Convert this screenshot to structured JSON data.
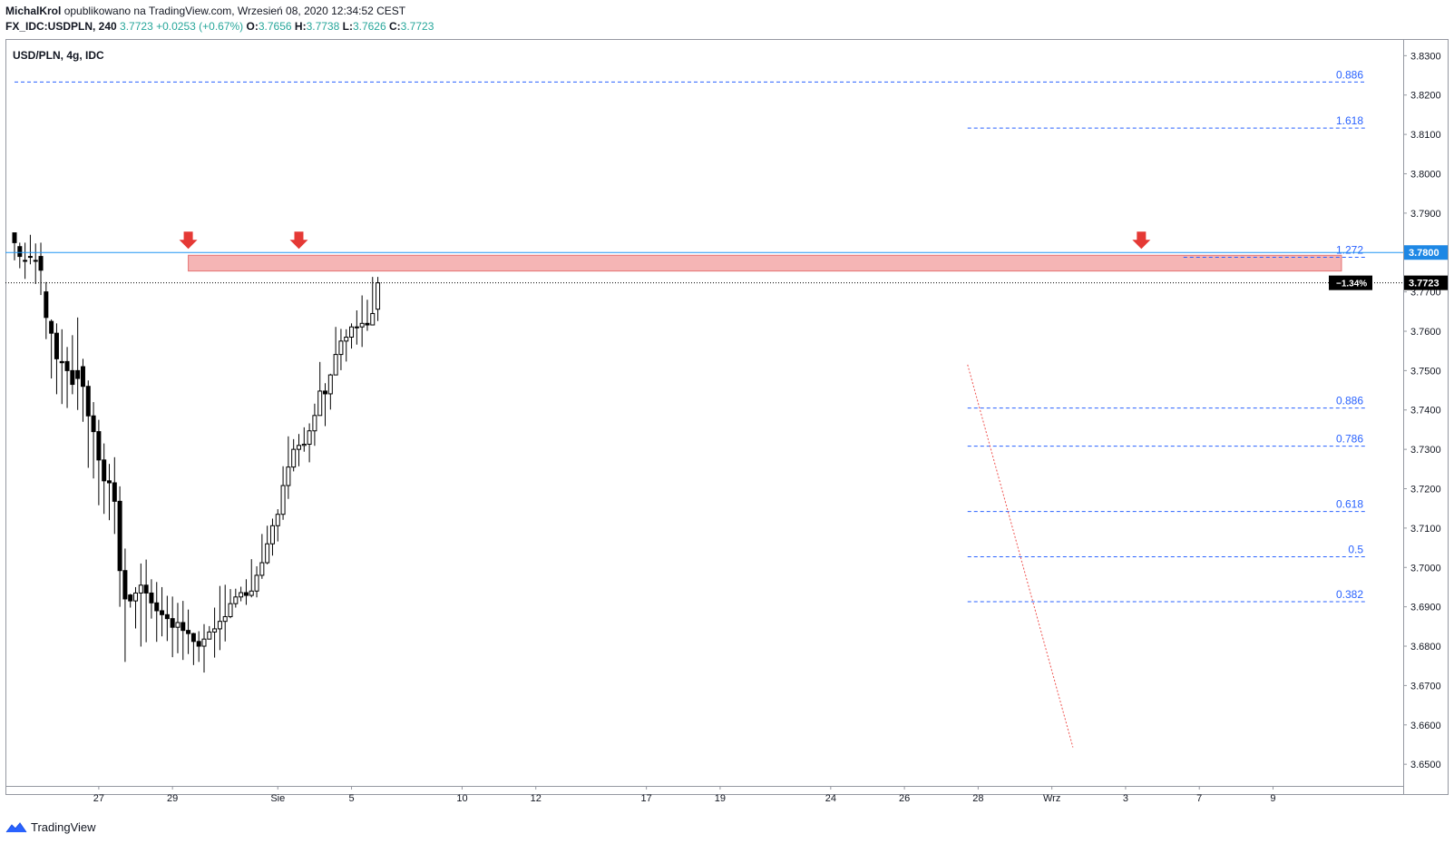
{
  "header": {
    "author": "MichalKrol",
    "published": "opublikowano na TradingView.com, Wrzesień 08, 2020 12:34:52 CEST",
    "symbol": "FX_IDC:USDPLN, 240",
    "last": "3.7723",
    "change": "+0.0253 (+0.67%)",
    "open_label": "O:",
    "open": "3.7656",
    "high_label": "H:",
    "high": "3.7738",
    "low_label": "L:",
    "low": "3.7626",
    "close_label": "C:",
    "close": "3.7723"
  },
  "pane_label": "USD/PLN, 4g, IDC",
  "footer": {
    "brand": "TradingView"
  },
  "colors": {
    "resistance_line": "#2196f3",
    "zone_fill": "#f5b5b5",
    "zone_border": "#e57373",
    "arrow": "#e53935",
    "fib_line": "#2962ff",
    "fib_label": "#2962ff",
    "price_badge_bg": "#1e88e5",
    "current_badge_bg": "#000000",
    "down_candle": "#000000",
    "up_candle": "#ffffff",
    "trend_line": "#ef5350"
  },
  "chart_data": {
    "type": "candlestick",
    "title": "USD/PLN, 4g, IDC",
    "ylim": [
      3.6445,
      3.834
    ],
    "yticks": [
      "3.6500",
      "3.6600",
      "3.6700",
      "3.6800",
      "3.6900",
      "3.7000",
      "3.7100",
      "3.7200",
      "3.7300",
      "3.7400",
      "3.7500",
      "3.7600",
      "3.7700",
      "3.7800",
      "3.7900",
      "3.8000",
      "3.8100",
      "3.8200",
      "3.8300"
    ],
    "xticks": [
      {
        "label": "27",
        "bar": 16
      },
      {
        "label": "29",
        "bar": 30
      },
      {
        "label": "Sie",
        "bar": 50
      },
      {
        "label": "5",
        "bar": 64
      },
      {
        "label": "10",
        "bar": 85
      },
      {
        "label": "12",
        "bar": 99
      },
      {
        "label": "17",
        "bar": 120
      },
      {
        "label": "19",
        "bar": 134
      },
      {
        "label": "24",
        "bar": 155
      },
      {
        "label": "26",
        "bar": 169
      },
      {
        "label": "28",
        "bar": 183
      },
      {
        "label": "Wrz",
        "bar": 197
      },
      {
        "label": "3",
        "bar": 211
      },
      {
        "label": "7",
        "bar": 225
      },
      {
        "label": "9",
        "bar": 239
      }
    ],
    "resistance_level": "3.7800",
    "current_price": "3.7723",
    "current_change": "−1.34%",
    "resistance_zone": {
      "from_bar": 33,
      "to_bar": 252,
      "low": 3.7753,
      "high": 3.7793
    },
    "resistance_arrows": [
      33,
      54,
      214
    ],
    "fib_levels": [
      {
        "label": "0.886",
        "value": 3.8233,
        "from_bar": 0
      },
      {
        "label": "1.618",
        "value": 3.8116,
        "from_bar": 181
      },
      {
        "label": "1.272",
        "value": 3.7788,
        "from_bar": 222
      },
      {
        "label": "0.886",
        "value": 3.7405,
        "from_bar": 181
      },
      {
        "label": "0.786",
        "value": 3.7308,
        "from_bar": 181
      },
      {
        "label": "0.618",
        "value": 3.7142,
        "from_bar": 181
      },
      {
        "label": "0.5",
        "value": 3.7027,
        "from_bar": 181
      },
      {
        "label": "0.382",
        "value": 3.6913,
        "from_bar": 181
      }
    ],
    "trend_line": {
      "from": {
        "bar": 181,
        "price": 3.7515
      },
      "to": {
        "bar": 201,
        "price": 3.6543
      }
    },
    "candles": [
      [
        3.785,
        3.7825,
        3.783,
        3.778
      ],
      [
        3.7815,
        3.779,
        3.7825,
        3.776
      ],
      [
        3.778,
        3.778,
        3.7825,
        3.7733
      ],
      [
        3.779,
        3.779,
        3.7845,
        3.777
      ],
      [
        3.778,
        3.778,
        3.7823,
        3.772
      ],
      [
        3.779,
        3.7755,
        3.7825,
        3.7692
      ],
      [
        3.77,
        3.7635,
        3.7725,
        3.758
      ],
      [
        3.7625,
        3.7595,
        3.763,
        3.748
      ],
      [
        3.7595,
        3.753,
        3.762,
        3.744
      ],
      [
        3.7523,
        3.752,
        3.7605,
        3.7415
      ],
      [
        3.7523,
        3.75,
        3.756,
        3.7405
      ],
      [
        3.75,
        3.7465,
        3.759,
        3.744
      ],
      [
        3.75,
        3.748,
        3.7635,
        3.74
      ],
      [
        3.751,
        3.746,
        3.753,
        3.737
      ],
      [
        3.746,
        3.7385,
        3.7475,
        3.7253
      ],
      [
        3.7385,
        3.7345,
        3.742,
        3.7226
      ],
      [
        3.7345,
        3.7273,
        3.7375,
        3.7158
      ],
      [
        3.7273,
        3.722,
        3.7315,
        3.7136
      ],
      [
        3.722,
        3.7215,
        3.7263,
        3.712
      ],
      [
        3.7215,
        3.7168,
        3.728,
        3.7085
      ],
      [
        3.7168,
        3.6992,
        3.7206,
        3.69
      ],
      [
        3.6992,
        3.692,
        3.7048,
        3.676
      ],
      [
        3.693,
        3.6915,
        3.6933,
        3.6898
      ],
      [
        3.6915,
        3.6935,
        3.695,
        3.6845
      ],
      [
        3.6935,
        3.6955,
        3.701,
        3.6799
      ],
      [
        3.6955,
        3.6935,
        3.702,
        3.681
      ],
      [
        3.6935,
        3.691,
        3.697,
        3.687
      ],
      [
        3.691,
        3.689,
        3.6963,
        3.6811
      ],
      [
        3.689,
        3.688,
        3.695,
        3.6825
      ],
      [
        3.688,
        3.687,
        3.6928,
        3.6813
      ],
      [
        3.687,
        3.6848,
        3.6926,
        3.6772
      ],
      [
        3.6848,
        3.686,
        3.691,
        3.6782
      ],
      [
        3.686,
        3.684,
        3.6915,
        3.6765
      ],
      [
        3.684,
        3.6832,
        3.6893,
        3.678
      ],
      [
        3.6832,
        3.6812,
        3.6834,
        3.6752
      ],
      [
        3.6812,
        3.68,
        3.6838,
        3.676
      ],
      [
        3.68,
        3.6818,
        3.6856,
        3.6733
      ],
      [
        3.6818,
        3.6836,
        3.6851,
        3.682
      ],
      [
        3.6836,
        3.6844,
        3.6898,
        3.6771
      ],
      [
        3.6844,
        3.6863,
        3.6953,
        3.679
      ],
      [
        3.6863,
        3.6875,
        3.6956,
        3.6812
      ],
      [
        3.6875,
        3.6908,
        3.6945,
        3.6871
      ],
      [
        3.6908,
        3.6925,
        3.6946,
        3.6898
      ],
      [
        3.6925,
        3.6936,
        3.6951,
        3.6914
      ],
      [
        3.6936,
        3.6929,
        3.697,
        3.6905
      ],
      [
        3.6929,
        3.694,
        3.7021,
        3.6924
      ],
      [
        3.694,
        3.698,
        3.7003,
        3.6924
      ],
      [
        3.698,
        3.7012,
        3.7085,
        3.6971
      ],
      [
        3.7012,
        3.706,
        3.7106,
        3.7008
      ],
      [
        3.706,
        3.7106,
        3.7124,
        3.703
      ],
      [
        3.7106,
        3.7135,
        3.7148,
        3.7066
      ],
      [
        3.7135,
        3.7208,
        3.7257,
        3.7121
      ],
      [
        3.7208,
        3.7255,
        3.7333,
        3.7174
      ],
      [
        3.7255,
        3.73,
        3.7326,
        3.7244
      ],
      [
        3.73,
        3.731,
        3.7339,
        3.7257
      ],
      [
        3.731,
        3.7313,
        3.7356,
        3.7294
      ],
      [
        3.7313,
        3.7347,
        3.7366,
        3.7267
      ],
      [
        3.7347,
        3.7386,
        3.7416,
        3.7309
      ],
      [
        3.7386,
        3.7448,
        3.7522,
        3.7388
      ],
      [
        3.7448,
        3.7441,
        3.7468,
        3.7359
      ],
      [
        3.7441,
        3.7489,
        3.7492,
        3.7401
      ],
      [
        3.7489,
        3.7541,
        3.7611,
        3.7508
      ],
      [
        3.7541,
        3.7575,
        3.7606,
        3.7501
      ],
      [
        3.7575,
        3.7585,
        3.7605,
        3.7523
      ],
      [
        3.7585,
        3.7611,
        3.762,
        3.7556
      ],
      [
        3.7611,
        3.7611,
        3.7653,
        3.7566
      ],
      [
        3.7611,
        3.762,
        3.7691,
        3.756
      ],
      [
        3.762,
        3.7616,
        3.768,
        3.7601
      ],
      [
        3.7616,
        3.7645,
        3.7738,
        3.7615
      ],
      [
        3.7656,
        3.7723,
        3.7738,
        3.7626
      ]
    ]
  }
}
